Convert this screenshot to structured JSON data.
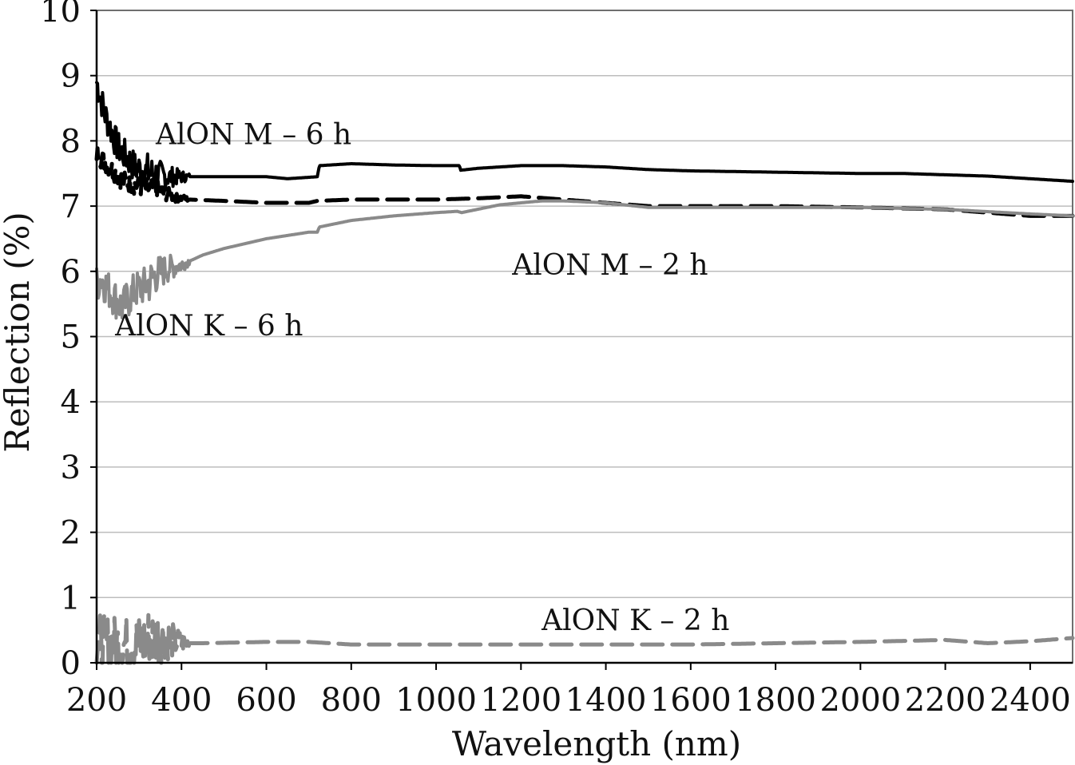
{
  "chart_data": {
    "type": "line",
    "title": "",
    "xlabel": "Wavelength (nm)",
    "ylabel": "Reflection (%)",
    "xlim": [
      200,
      2500
    ],
    "ylim": [
      0,
      10
    ],
    "x_ticks": [
      "200",
      "400",
      "600",
      "800",
      "1000",
      "1200",
      "1400",
      "1600",
      "1800",
      "2000",
      "2200",
      "2400"
    ],
    "y_ticks": [
      "0",
      "1",
      "2",
      "3",
      "4",
      "5",
      "6",
      "7",
      "8",
      "9",
      "10"
    ],
    "grid": "horizontal",
    "legend": "inline labels",
    "series": [
      {
        "name": "AlON M – 6 h",
        "color": "#000000",
        "dash": "solid",
        "noise": 0.25,
        "x": [
          200,
          220,
          250,
          290,
          330,
          370,
          400,
          450,
          520,
          600,
          650,
          720,
          725,
          800,
          900,
          1000,
          1055,
          1058,
          1100,
          1200,
          1300,
          1400,
          1500,
          1600,
          1800,
          2000,
          2100,
          2200,
          2300,
          2400,
          2500
        ],
        "y": [
          8.9,
          8.4,
          7.9,
          7.6,
          7.5,
          7.45,
          7.45,
          7.45,
          7.45,
          7.45,
          7.42,
          7.45,
          7.62,
          7.65,
          7.63,
          7.62,
          7.62,
          7.55,
          7.58,
          7.62,
          7.62,
          7.6,
          7.56,
          7.54,
          7.52,
          7.5,
          7.5,
          7.48,
          7.46,
          7.42,
          7.38
        ]
      },
      {
        "name": "AlON M – 2 h",
        "color": "#000000",
        "dash": "dashed",
        "noise": 0.15,
        "x": [
          200,
          230,
          260,
          300,
          340,
          380,
          420,
          500,
          600,
          700,
          720,
          800,
          900,
          1000,
          1100,
          1200,
          1300,
          1400,
          1500,
          1600,
          1800,
          2000,
          2200,
          2300,
          2400,
          2500
        ],
        "y": [
          7.8,
          7.6,
          7.4,
          7.3,
          7.25,
          7.15,
          7.1,
          7.08,
          7.05,
          7.05,
          7.08,
          7.1,
          7.1,
          7.1,
          7.12,
          7.15,
          7.1,
          7.05,
          7.0,
          7.0,
          7.0,
          6.98,
          6.95,
          6.9,
          6.85,
          6.85
        ]
      },
      {
        "name": "AlON K – 6 h",
        "color": "#8a8a8a",
        "dash": "solid",
        "noise": 0.3,
        "x": [
          200,
          210,
          230,
          260,
          290,
          320,
          340,
          370,
          400,
          450,
          500,
          600,
          700,
          720,
          725,
          800,
          900,
          1000,
          1050,
          1060,
          1150,
          1250,
          1300,
          1400,
          1500,
          1600,
          1800,
          2000,
          2200,
          2400,
          2500
        ],
        "y": [
          5.8,
          5.9,
          5.7,
          5.45,
          5.7,
          5.8,
          5.95,
          6.05,
          6.1,
          6.25,
          6.35,
          6.5,
          6.6,
          6.6,
          6.68,
          6.78,
          6.85,
          6.9,
          6.92,
          6.9,
          7.02,
          7.08,
          7.08,
          7.05,
          6.98,
          6.98,
          6.98,
          6.98,
          6.95,
          6.88,
          6.85
        ]
      },
      {
        "name": "AlON K – 2 h",
        "color": "#8a8a8a",
        "dash": "dashed",
        "noise": 0.45,
        "x": [
          200,
          210,
          250,
          300,
          350,
          400,
          450,
          600,
          700,
          800,
          1000,
          1200,
          1400,
          1600,
          1800,
          2000,
          2200,
          2300,
          2400,
          2500
        ],
        "y": [
          0.35,
          0.3,
          0.28,
          0.3,
          0.4,
          0.3,
          0.3,
          0.32,
          0.32,
          0.28,
          0.28,
          0.28,
          0.28,
          0.28,
          0.3,
          0.32,
          0.35,
          0.3,
          0.33,
          0.38
        ]
      }
    ],
    "annotations": [
      {
        "text": "AlON M – 6 h",
        "x": 570,
        "y": 7.95
      },
      {
        "text": "AlON M – 2 h",
        "x": 1410,
        "y": 5.95
      },
      {
        "text": "AlON K – 6 h",
        "x": 465,
        "y": 5.02
      },
      {
        "text": "AlON K – 2 h",
        "x": 1470,
        "y": 0.5
      }
    ]
  }
}
